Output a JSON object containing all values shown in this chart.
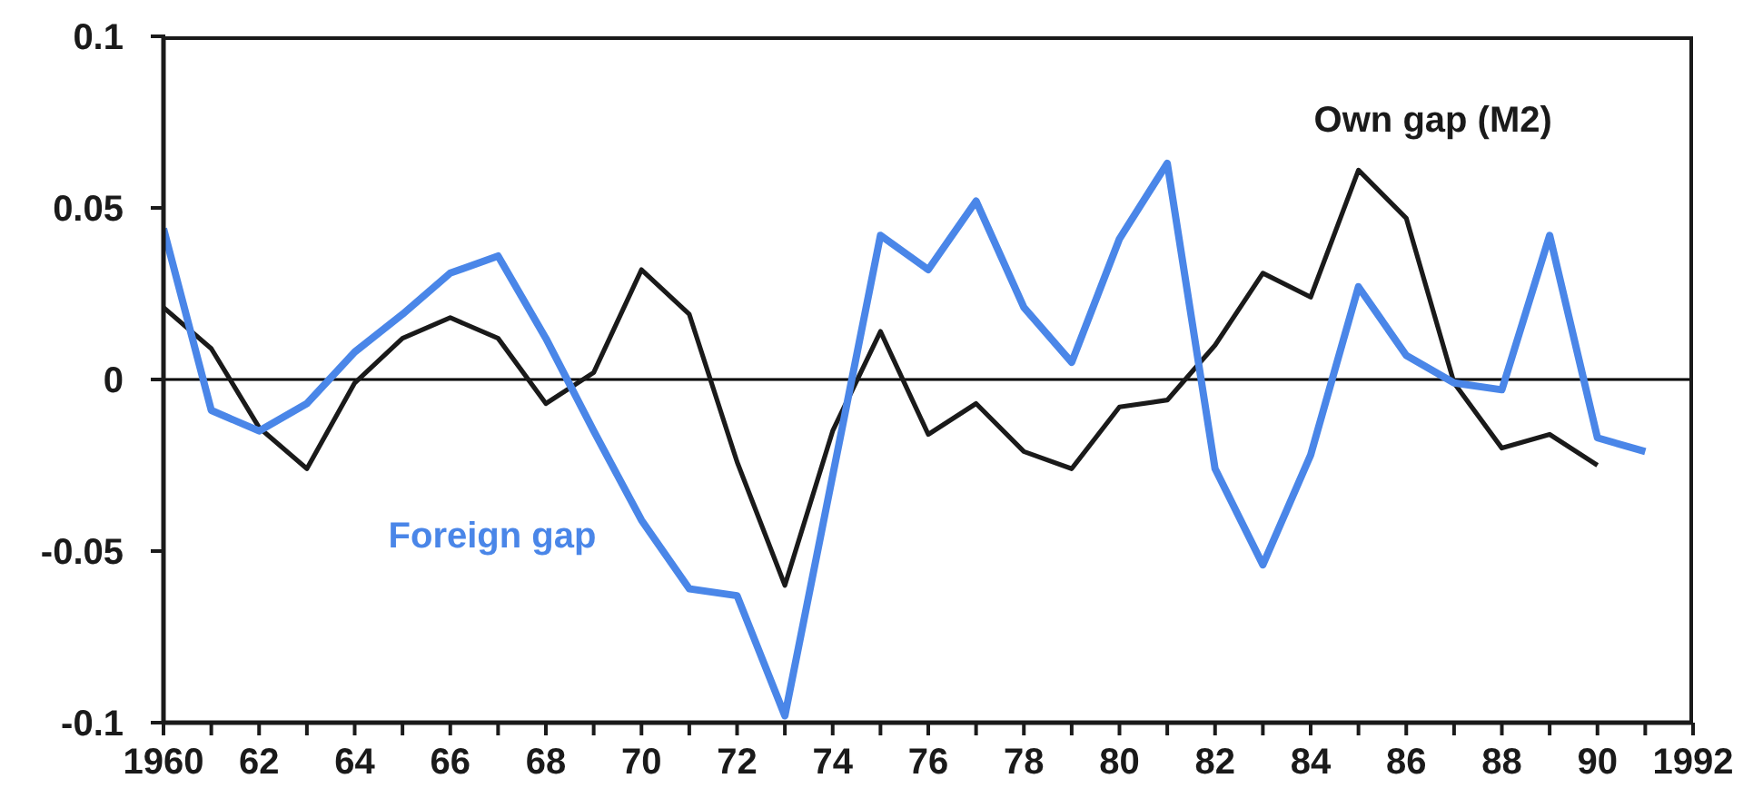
{
  "chart_data": {
    "type": "line",
    "x": [
      1960,
      1961,
      1962,
      1963,
      1964,
      1965,
      1966,
      1967,
      1968,
      1969,
      1970,
      1971,
      1972,
      1973,
      1974,
      1975,
      1976,
      1977,
      1978,
      1979,
      1980,
      1981,
      1982,
      1983,
      1984,
      1985,
      1986,
      1987,
      1988,
      1989,
      1990,
      1991
    ],
    "series": [
      {
        "name": "Own gap (M2)",
        "color": "#1a1a1a",
        "values": [
          0.021,
          0.009,
          -0.014,
          -0.026,
          -0.001,
          0.012,
          0.018,
          0.012,
          -0.007,
          0.002,
          0.032,
          0.019,
          -0.024,
          -0.06,
          -0.015,
          0.014,
          -0.016,
          -0.007,
          -0.021,
          -0.026,
          -0.008,
          -0.006,
          0.01,
          0.031,
          0.024,
          0.061,
          0.047,
          -0.001,
          -0.02,
          -0.016,
          -0.025,
          null
        ]
      },
      {
        "name": "Foreign gap",
        "color": "#4a86e8",
        "values": [
          0.044,
          -0.009,
          -0.015,
          -0.007,
          0.008,
          0.019,
          0.031,
          0.036,
          0.012,
          -0.015,
          -0.041,
          -0.061,
          -0.063,
          -0.098,
          -0.028,
          0.042,
          0.032,
          0.052,
          0.021,
          0.005,
          0.041,
          0.063,
          -0.026,
          -0.054,
          -0.022,
          0.027,
          0.007,
          -0.001,
          -0.003,
          0.042,
          -0.017,
          -0.021
        ]
      }
    ],
    "xlim": [
      1960,
      1992
    ],
    "xticks": [
      1960,
      {
        "value": 1961,
        "label": null
      },
      {
        "value": 1962,
        "label": "62"
      },
      {
        "value": 1963,
        "label": null
      },
      {
        "value": 1964,
        "label": "64"
      },
      {
        "value": 1965,
        "label": null
      },
      {
        "value": 1966,
        "label": "66"
      },
      {
        "value": 1967,
        "label": null
      },
      {
        "value": 1968,
        "label": "68"
      },
      {
        "value": 1969,
        "label": null
      },
      {
        "value": 1970,
        "label": "70"
      },
      {
        "value": 1971,
        "label": null
      },
      {
        "value": 1972,
        "label": "72"
      },
      {
        "value": 1973,
        "label": null
      },
      {
        "value": 1974,
        "label": "74"
      },
      {
        "value": 1975,
        "label": null
      },
      {
        "value": 1976,
        "label": "76"
      },
      {
        "value": 1977,
        "label": null
      },
      {
        "value": 1978,
        "label": "78"
      },
      {
        "value": 1979,
        "label": null
      },
      {
        "value": 1980,
        "label": "80"
      },
      {
        "value": 1981,
        "label": null
      },
      {
        "value": 1982,
        "label": "82"
      },
      {
        "value": 1983,
        "label": null
      },
      {
        "value": 1984,
        "label": "84"
      },
      {
        "value": 1985,
        "label": null
      },
      {
        "value": 1986,
        "label": "86"
      },
      {
        "value": 1987,
        "label": null
      },
      {
        "value": 1988,
        "label": "88"
      },
      {
        "value": 1989,
        "label": null
      },
      {
        "value": 1990,
        "label": "90"
      },
      {
        "value": 1991,
        "label": null
      },
      1992
    ],
    "ylim": [
      -0.1,
      0.1
    ],
    "yticks": [
      -0.1,
      -0.05,
      0,
      0.05,
      0.1
    ],
    "ref_lines": [
      {
        "axis": "y",
        "value": 0,
        "color": "#000000"
      }
    ],
    "grid": false,
    "legend": false,
    "marker": "none",
    "line_style": "solid"
  }
}
